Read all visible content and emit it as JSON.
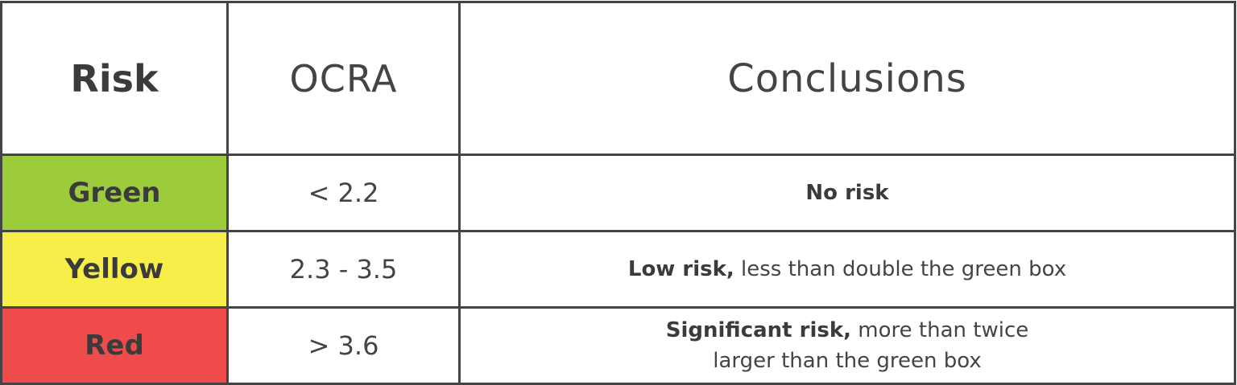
{
  "header": {
    "risk": "Risk",
    "ocra": "OCRA",
    "conclusions": "Conclusions"
  },
  "rows": [
    {
      "level": "Green",
      "color": "#9ccc3c",
      "ocra": "< 2.2",
      "conclusion_bold": "No risk",
      "conclusion_rest": "",
      "conclusion_line2": ""
    },
    {
      "level": "Yellow",
      "color": "#f8ee4a",
      "ocra": "2.3 - 3.5",
      "conclusion_bold": "Low risk,",
      "conclusion_rest": " less than double the green box",
      "conclusion_line2": ""
    },
    {
      "level": "Red",
      "color": "#ef4b4d",
      "ocra": "> 3.6",
      "conclusion_bold": "Significant risk,",
      "conclusion_rest": " more than twice",
      "conclusion_line2": "larger than the green box"
    }
  ]
}
